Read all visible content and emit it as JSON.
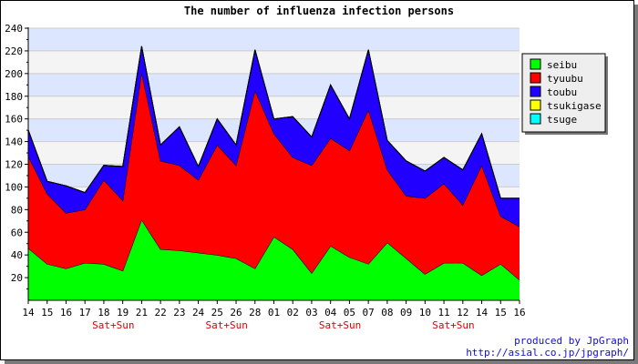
{
  "chart_data": {
    "type": "area",
    "stacked": true,
    "title": "The number of influenza infection persons",
    "categories": [
      "14",
      "15",
      "16",
      "17",
      "18",
      "19",
      "21",
      "22",
      "23",
      "24",
      "25",
      "26",
      "28",
      "01",
      "02",
      "03",
      "04",
      "05",
      "07",
      "08",
      "09",
      "10",
      "11",
      "12",
      "14",
      "15",
      "16"
    ],
    "weekend_label": "Sat+Sun",
    "weekend_indices": [
      4,
      10,
      16,
      22
    ],
    "ylim": [
      0,
      240
    ],
    "yticks": [
      20,
      40,
      60,
      80,
      100,
      120,
      140,
      160,
      180,
      200,
      220,
      240
    ],
    "grid": true,
    "legend_position": "right",
    "series": [
      {
        "name": "seibu",
        "color": "#00ff00",
        "values": [
          46,
          32,
          28,
          33,
          32,
          26,
          71,
          45,
          44,
          42,
          40,
          37,
          28,
          56,
          45,
          24,
          48,
          38,
          32,
          51,
          37,
          23,
          33,
          33,
          22,
          32,
          18
        ]
      },
      {
        "name": "tyuubu",
        "color": "#ff0000",
        "values": [
          81,
          62,
          49,
          47,
          74,
          62,
          130,
          78,
          75,
          64,
          97,
          82,
          157,
          91,
          81,
          95,
          95,
          94,
          136,
          64,
          55,
          67,
          70,
          51,
          97,
          42,
          47
        ]
      },
      {
        "name": "toubu",
        "color": "#2200ff",
        "values": [
          23,
          11,
          24,
          15,
          13,
          30,
          23,
          14,
          34,
          12,
          23,
          18,
          36,
          13,
          36,
          25,
          47,
          28,
          53,
          26,
          31,
          24,
          23,
          31,
          28,
          16,
          25
        ]
      },
      {
        "name": "tsukigase",
        "color": "#ffff00",
        "values": [
          0,
          0,
          0,
          0,
          0,
          0,
          0,
          0,
          0,
          0,
          0,
          0,
          0,
          0,
          0,
          0,
          0,
          0,
          0,
          0,
          0,
          0,
          0,
          0,
          0,
          0,
          0
        ]
      },
      {
        "name": "tsuge",
        "color": "#00ffff",
        "values": [
          0,
          0,
          0,
          0,
          0,
          0,
          0,
          0,
          0,
          0,
          0,
          0,
          0,
          0,
          0,
          0,
          0,
          0,
          0,
          0,
          0,
          0,
          0,
          0,
          0,
          0,
          0
        ]
      }
    ]
  },
  "credit": {
    "line1": "produced by JpGraph",
    "line2": "http://asial.co.jp/jpgraph/"
  }
}
